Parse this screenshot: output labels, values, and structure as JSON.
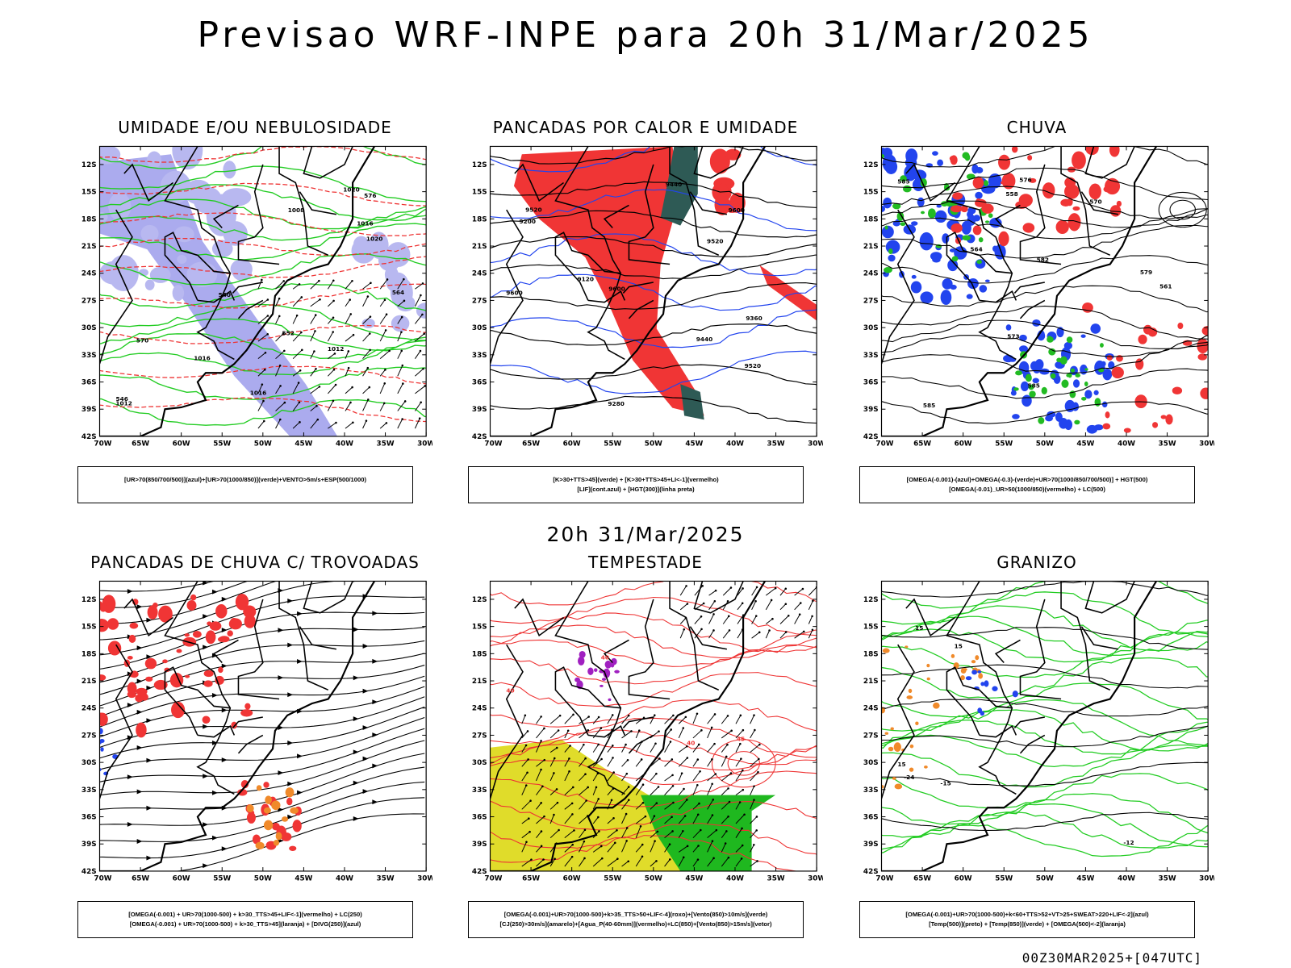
{
  "title": "Previsao WRF-INPE  para 20h 31/Mar/2025",
  "mid_title": "20h 31/Mar/2025",
  "footer": "00Z30MAR2025+[047UTC]",
  "axes": {
    "lat_labels": [
      "12S",
      "15S",
      "18S",
      "21S",
      "24S",
      "27S",
      "30S",
      "33S",
      "36S",
      "39S",
      "42S"
    ],
    "lon_labels": [
      "70W",
      "65W",
      "60W",
      "55W",
      "50W",
      "45W",
      "40W",
      "35W",
      "30W"
    ]
  },
  "panels": [
    {
      "title": "UMIDADE E/OU NEBULOSIDADE",
      "legend": [
        "[UR>70(850/700/500)](azul)+[UR>70(1000/850)](verde)+VENTO>5m/s+ESP(500/1000)"
      ],
      "contour_labels": [
        "1012",
        "1012",
        "1016",
        "1016",
        "1020",
        "1020",
        "1008",
        "1016",
        "570",
        "576",
        "564",
        "552",
        "546",
        "540"
      ],
      "fields": {
        "blue_band": "#8f8fe8",
        "green_lines": "#22cc22",
        "red_lines": "#ee3333"
      }
    },
    {
      "title": "PANCADAS POR CALOR E UMIDADE",
      "legend": [
        "[K>30+TTS>45](verde) + [K>30+TTS>45+LI<-1](vermelho)",
        "[LIF](cont.azul) + [HGT(300)](linha preta)"
      ],
      "contour_labels": [
        "9600",
        "9520",
        "9600",
        "9440",
        "9520",
        "9360",
        "9280",
        "9200",
        "9120",
        "9520",
        "9600",
        "9440"
      ],
      "fields": {
        "red_fill": "#f03535",
        "dark_fill": "#2e5a55",
        "blue_lines": "#2244ee"
      }
    },
    {
      "title": "CHUVA",
      "legend": [
        "[OMEGA(-0.001)-(azul)+OMEGA(-0.3)-(verde)+UR>70(1000/850/700/500)] + HGT(500)",
        "[OMEGA(-0.01)_UR>50(1000/850)(vermelho) + LC(500)"
      ],
      "contour_labels": [
        "585",
        "585",
        "582",
        "579",
        "576",
        "573",
        "570",
        "564",
        "561",
        "558",
        "585"
      ],
      "fields": {
        "blue_fill": "#2244ee",
        "green_fill": "#22bb22",
        "red_fill": "#f03535"
      }
    },
    {
      "title": "PANCADAS DE CHUVA C/ TROVOADAS",
      "legend": [
        "[OMEGA(-0.001) + UR>70(1000-500) + k>30_TTS>45+LIF<-1](vermelho) + LC(250)",
        "[OMEGA(-0.001) + UR>70(1000-500) + k>30_TTS>45](laranja) + [DIVG(250)](azul)"
      ],
      "contour_labels": [],
      "fields": {
        "red_fill": "#f03535",
        "orange_fill": "#f08a2a",
        "blue_fill": "#2244ee"
      }
    },
    {
      "title": "TEMPESTADE",
      "legend": [
        "[OMEGA(-0.001)+UR>70(1000-500)+k>35_TTS>50+LIF<-4](roxo)+[Vento(850)>10m/s](verde)",
        "[CJ(250)>30m/s](amarelo)+[Agua_P(40-60mm)](vermelho)+LC(850)+[Vento(850)>15m/s](vetor)"
      ],
      "contour_labels": [
        "40",
        "40",
        "45",
        "40"
      ],
      "fields": {
        "yellow_fill": "#e0dc2a",
        "green_fill": "#1fb81f",
        "purple_fill": "#a020c0",
        "red_lines": "#ee3333"
      }
    },
    {
      "title": "GRANIZO",
      "legend": [
        "[OMEGA(-0.001)+UR>70(1000-500)+k<60+TTS>52+VT>25+SWEAT>220+LIF<-2](azul)",
        "[Temp(500)](preto) + [Temp(850)](verde) + [OMEGA(500)<-2](laranja)"
      ],
      "contour_labels": [
        "15",
        "15",
        "-15",
        "-12",
        "-24",
        "15"
      ],
      "fields": {
        "green_lines": "#22cc22",
        "orange_fill": "#f08a2a",
        "blue_fill": "#2244ee"
      }
    }
  ]
}
